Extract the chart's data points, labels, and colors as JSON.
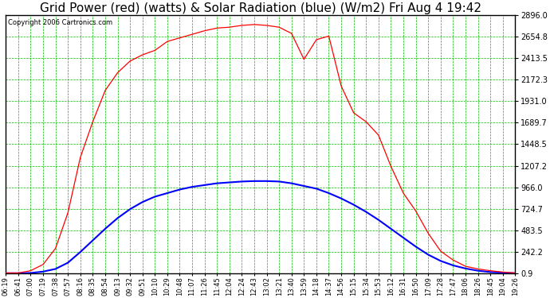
{
  "title": "Grid Power (red) (watts) & Solar Radiation (blue) (W/m2) Fri Aug 4 19:42",
  "copyright": "Copyright 2006 Cartronics.com",
  "bg_color": "#ffffff",
  "plot_bg_color": "#ffffff",
  "grid_color": "#00bb00",
  "title_fontsize": 11,
  "yticks": [
    0.9,
    242.2,
    483.5,
    724.7,
    966.0,
    1207.2,
    1448.5,
    1689.7,
    1931.0,
    2172.3,
    2413.5,
    2654.8,
    2896.0
  ],
  "xtick_labels": [
    "06:19",
    "06:41",
    "07:00",
    "07:19",
    "07:38",
    "07:57",
    "08:16",
    "08:35",
    "08:54",
    "09:13",
    "09:32",
    "09:51",
    "10:10",
    "10:29",
    "10:48",
    "11:07",
    "11:26",
    "11:45",
    "12:04",
    "12:24",
    "12:43",
    "13:02",
    "13:21",
    "13:40",
    "13:59",
    "14:18",
    "14:37",
    "14:56",
    "15:15",
    "15:34",
    "15:53",
    "16:12",
    "16:31",
    "16:50",
    "17:09",
    "17:28",
    "17:47",
    "18:06",
    "18:26",
    "18:45",
    "19:04",
    "19:26"
  ],
  "red_y": [
    5,
    5,
    30,
    100,
    280,
    680,
    1300,
    1700,
    2050,
    2250,
    2380,
    2450,
    2500,
    2600,
    2640,
    2680,
    2720,
    2750,
    2760,
    2780,
    2790,
    2780,
    2760,
    2690,
    2400,
    2620,
    2660,
    2100,
    1800,
    1700,
    1550,
    1200,
    900,
    700,
    450,
    250,
    150,
    80,
    50,
    30,
    15,
    5
  ],
  "blue_y": [
    2,
    2,
    5,
    20,
    50,
    120,
    240,
    370,
    500,
    620,
    720,
    800,
    860,
    900,
    940,
    970,
    990,
    1010,
    1020,
    1030,
    1035,
    1035,
    1030,
    1010,
    980,
    950,
    900,
    840,
    770,
    690,
    600,
    500,
    400,
    300,
    210,
    140,
    90,
    55,
    30,
    15,
    8,
    2
  ],
  "ymin": 0.9,
  "ymax": 2896.0,
  "red_color": "#ff0000",
  "blue_color": "#0000ff"
}
